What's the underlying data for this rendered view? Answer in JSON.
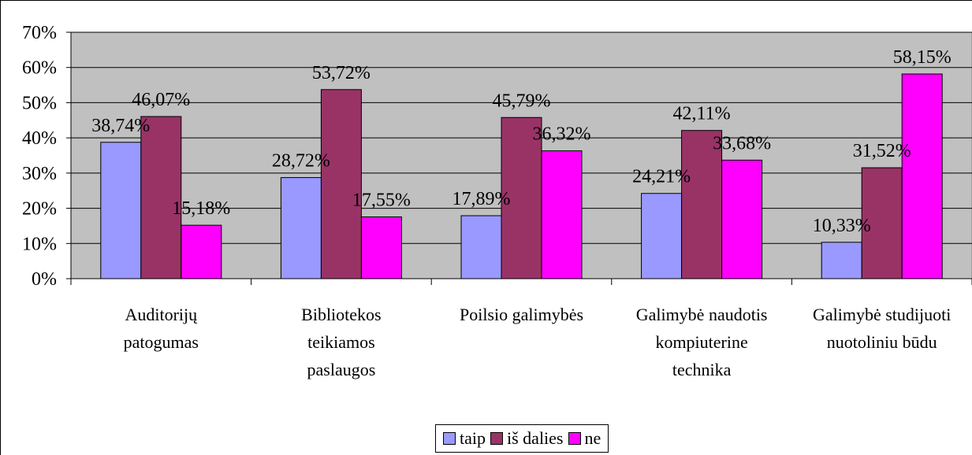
{
  "chart_data": {
    "type": "bar",
    "categories": [
      "Auditorijų\npatogumas",
      "Bibliotekos\nteikiamos\npaslaugos",
      "Poilsio galimybės",
      "Galimybė naudotis\nkompiuterine\ntechnika",
      "Galimybė studijuoti\nnuotoliniu būdu"
    ],
    "series": [
      {
        "name": "taip",
        "color": "#9999ff",
        "values": [
          38.74,
          28.72,
          17.89,
          24.21,
          10.33
        ],
        "value_labels": [
          "38,74%",
          "28,72%",
          "17,89%",
          "24,21%",
          "10,33%"
        ]
      },
      {
        "name": "iš dalies",
        "color": "#993366",
        "values": [
          46.07,
          53.72,
          45.79,
          42.11,
          31.52
        ],
        "value_labels": [
          "46,07%",
          "53,72%",
          "45,79%",
          "42,11%",
          "31,52%"
        ]
      },
      {
        "name": "ne",
        "color": "#ff00ff",
        "values": [
          15.18,
          17.55,
          36.32,
          33.68,
          58.15
        ],
        "value_labels": [
          "15,18%",
          "17,55%",
          "36,32%",
          "33,68%",
          "58,15%"
        ]
      }
    ],
    "ylim": [
      0,
      70
    ],
    "yticks": [
      {
        "value": 0,
        "label": "0%"
      },
      {
        "value": 10,
        "label": "10%"
      },
      {
        "value": 20,
        "label": "20%"
      },
      {
        "value": 30,
        "label": "30%"
      },
      {
        "value": 40,
        "label": "40%"
      },
      {
        "value": 50,
        "label": "50%"
      },
      {
        "value": 60,
        "label": "60%"
      },
      {
        "value": 70,
        "label": "70%"
      }
    ],
    "grid": true,
    "legend": "bottom"
  }
}
